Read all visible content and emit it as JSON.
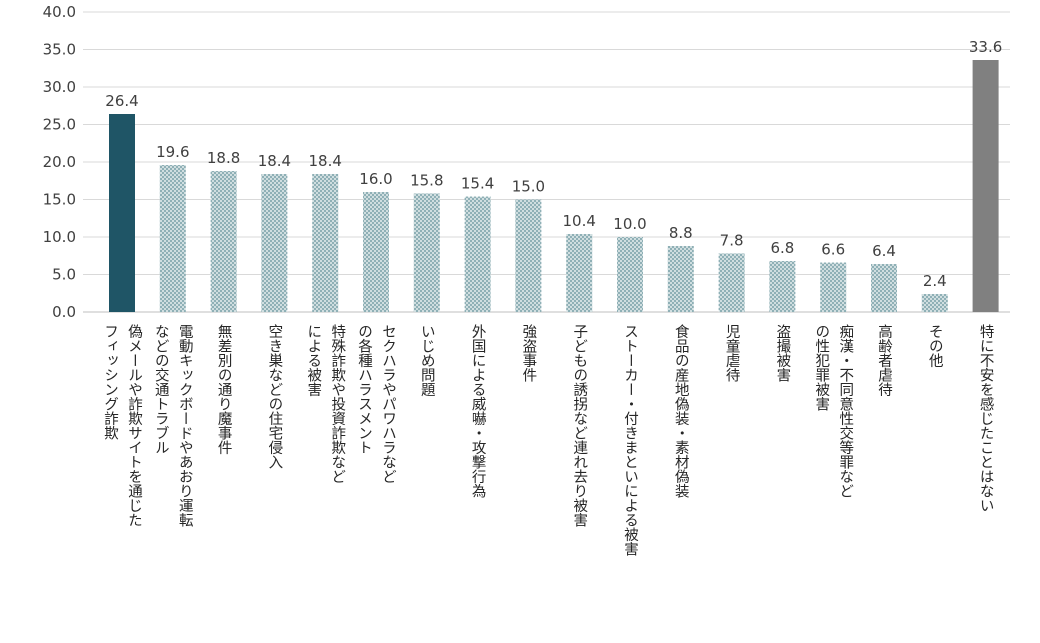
{
  "chart_data": {
    "type": "bar",
    "title": "",
    "xlabel": "",
    "ylabel": "",
    "ylim": [
      0,
      40
    ],
    "yticks": [
      "0.0",
      "5.0",
      "10.0",
      "15.0",
      "20.0",
      "25.0",
      "30.0",
      "35.0",
      "40.0"
    ],
    "grid": true,
    "legend": "none",
    "categories": [
      [
        "フィッシング詐欺",
        "偽メールや詐欺サイトを通じた"
      ],
      [
        "などの交通トラブル",
        "電動キックボードやあおり運転"
      ],
      [
        "無差別の通り魔事件"
      ],
      [
        "空き巣などの住宅侵入"
      ],
      [
        "による被害",
        "特殊詐欺や投資詐欺など"
      ],
      [
        "の各種ハラスメント",
        "セクハラやパワハラなど"
      ],
      [
        "いじめ問題"
      ],
      [
        "外国による威嚇・攻撃行為"
      ],
      [
        "強盗事件"
      ],
      [
        "子どもの誘拐など連れ去り被害"
      ],
      [
        "ストーカー・付きまといによる被害"
      ],
      [
        "食品の産地偽装・素材偽装"
      ],
      [
        "児童虐待"
      ],
      [
        "盗撮被害"
      ],
      [
        "の性犯罪被害",
        "痴漢・不同意性交等罪など"
      ],
      [
        "高齢者虐待"
      ],
      [
        "その他"
      ],
      [
        "特に不安を感じたことはない"
      ]
    ],
    "values": [
      26.4,
      19.6,
      18.8,
      18.4,
      18.4,
      16.0,
      15.8,
      15.4,
      15.0,
      10.4,
      10.0,
      8.8,
      7.8,
      6.8,
      6.6,
      6.4,
      2.4,
      33.6
    ],
    "value_labels": [
      "26.4",
      "19.6",
      "18.8",
      "18.4",
      "18.4",
      "16.0",
      "15.8",
      "15.4",
      "15.0",
      "10.4",
      "10.0",
      "8.8",
      "7.8",
      "6.8",
      "6.6",
      "6.4",
      "2.4",
      "33.6"
    ],
    "bar_styles": [
      "highlight",
      "pattern",
      "pattern",
      "pattern",
      "pattern",
      "pattern",
      "pattern",
      "pattern",
      "pattern",
      "pattern",
      "pattern",
      "pattern",
      "pattern",
      "pattern",
      "pattern",
      "pattern",
      "pattern",
      "gray"
    ],
    "colors": {
      "highlight": "#1f5566",
      "pattern_fill": "#8fb0b6",
      "pattern_dot": "#ffffff",
      "gray": "#808080",
      "grid": "#d9d9d9",
      "axis": "#bfbfbf"
    }
  }
}
